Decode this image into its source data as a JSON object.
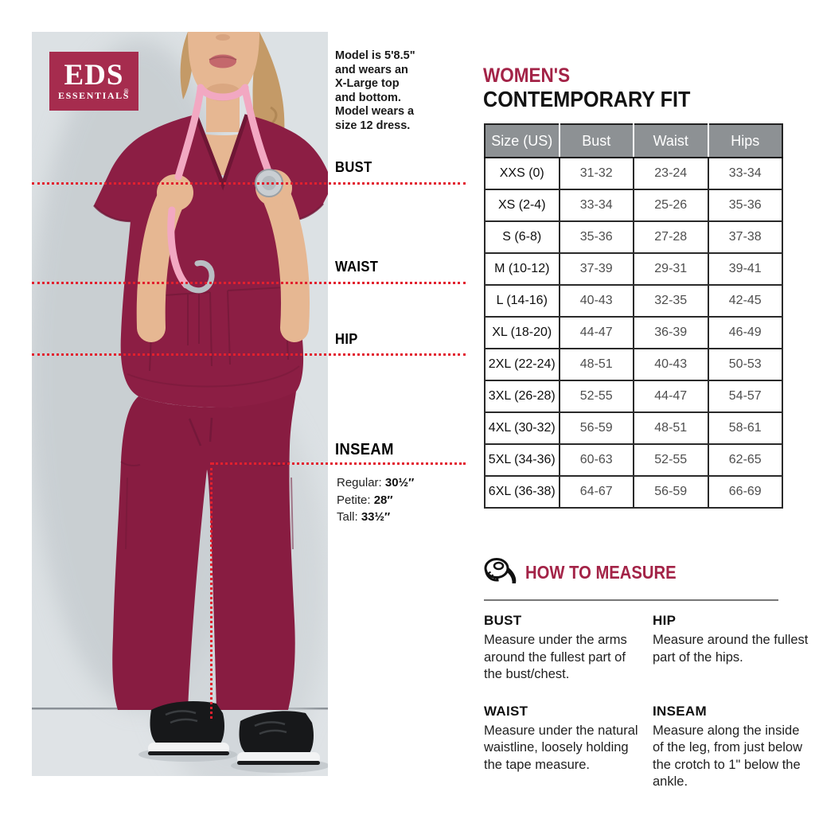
{
  "brand": {
    "name": "EDS",
    "registered": "®",
    "subname": "ESSENTIALS"
  },
  "model_note": "Model is 5'8.5\"\nand wears an\nX-Large top\nand bottom.\nModel wears a\nsize 12 dress.",
  "measurement_labels": {
    "bust": "BUST",
    "waist": "WAIST",
    "hip": "HIP",
    "inseam": "INSEAM"
  },
  "inseam_lengths": [
    {
      "label": "Regular: ",
      "value": "30½″"
    },
    {
      "label": "Petite: ",
      "value": "28″"
    },
    {
      "label": "Tall: ",
      "value": "33½″"
    }
  ],
  "title": {
    "line1": "WOMEN'S",
    "line2": "CONTEMPORARY FIT"
  },
  "size_table": {
    "headers": [
      "Size (US)",
      "Bust",
      "Waist",
      "Hips"
    ],
    "rows": [
      [
        "XXS (0)",
        "31-32",
        "23-24",
        "33-34"
      ],
      [
        "XS (2-4)",
        "33-34",
        "25-26",
        "35-36"
      ],
      [
        "S (6-8)",
        "35-36",
        "27-28",
        "37-38"
      ],
      [
        "M (10-12)",
        "37-39",
        "29-31",
        "39-41"
      ],
      [
        "L (14-16)",
        "40-43",
        "32-35",
        "42-45"
      ],
      [
        "XL (18-20)",
        "44-47",
        "36-39",
        "46-49"
      ],
      [
        "2XL (22-24)",
        "48-51",
        "40-43",
        "50-53"
      ],
      [
        "3XL (26-28)",
        "52-55",
        "44-47",
        "54-57"
      ],
      [
        "4XL (30-32)",
        "56-59",
        "48-51",
        "58-61"
      ],
      [
        "5XL (34-36)",
        "60-63",
        "52-55",
        "62-65"
      ],
      [
        "6XL (36-38)",
        "64-67",
        "56-59",
        "66-69"
      ]
    ]
  },
  "how_to_measure": {
    "heading": "HOW TO MEASURE",
    "icon": "tape-measure-icon",
    "sections": [
      {
        "title": "BUST",
        "text": "Measure under the arms around the fullest part of the bust/chest."
      },
      {
        "title": "HIP",
        "text": "Measure around the fullest part of the hips."
      },
      {
        "title": "WAIST",
        "text": "Measure under the natural waistline, loosely holding the tape measure."
      },
      {
        "title": "INSEAM",
        "text": "Measure along the inside of the leg, from just below the crotch to 1\" below the ankle."
      }
    ]
  },
  "colors": {
    "accent": "#A32347",
    "logo_bg": "#A62C4E",
    "table_header_bg": "#8D9194",
    "table_border": "#2A2A2A",
    "dotted_line": "#E2202E",
    "photo_bg": "#DCE1E4",
    "scrubs_wine": "#8C1E44"
  }
}
